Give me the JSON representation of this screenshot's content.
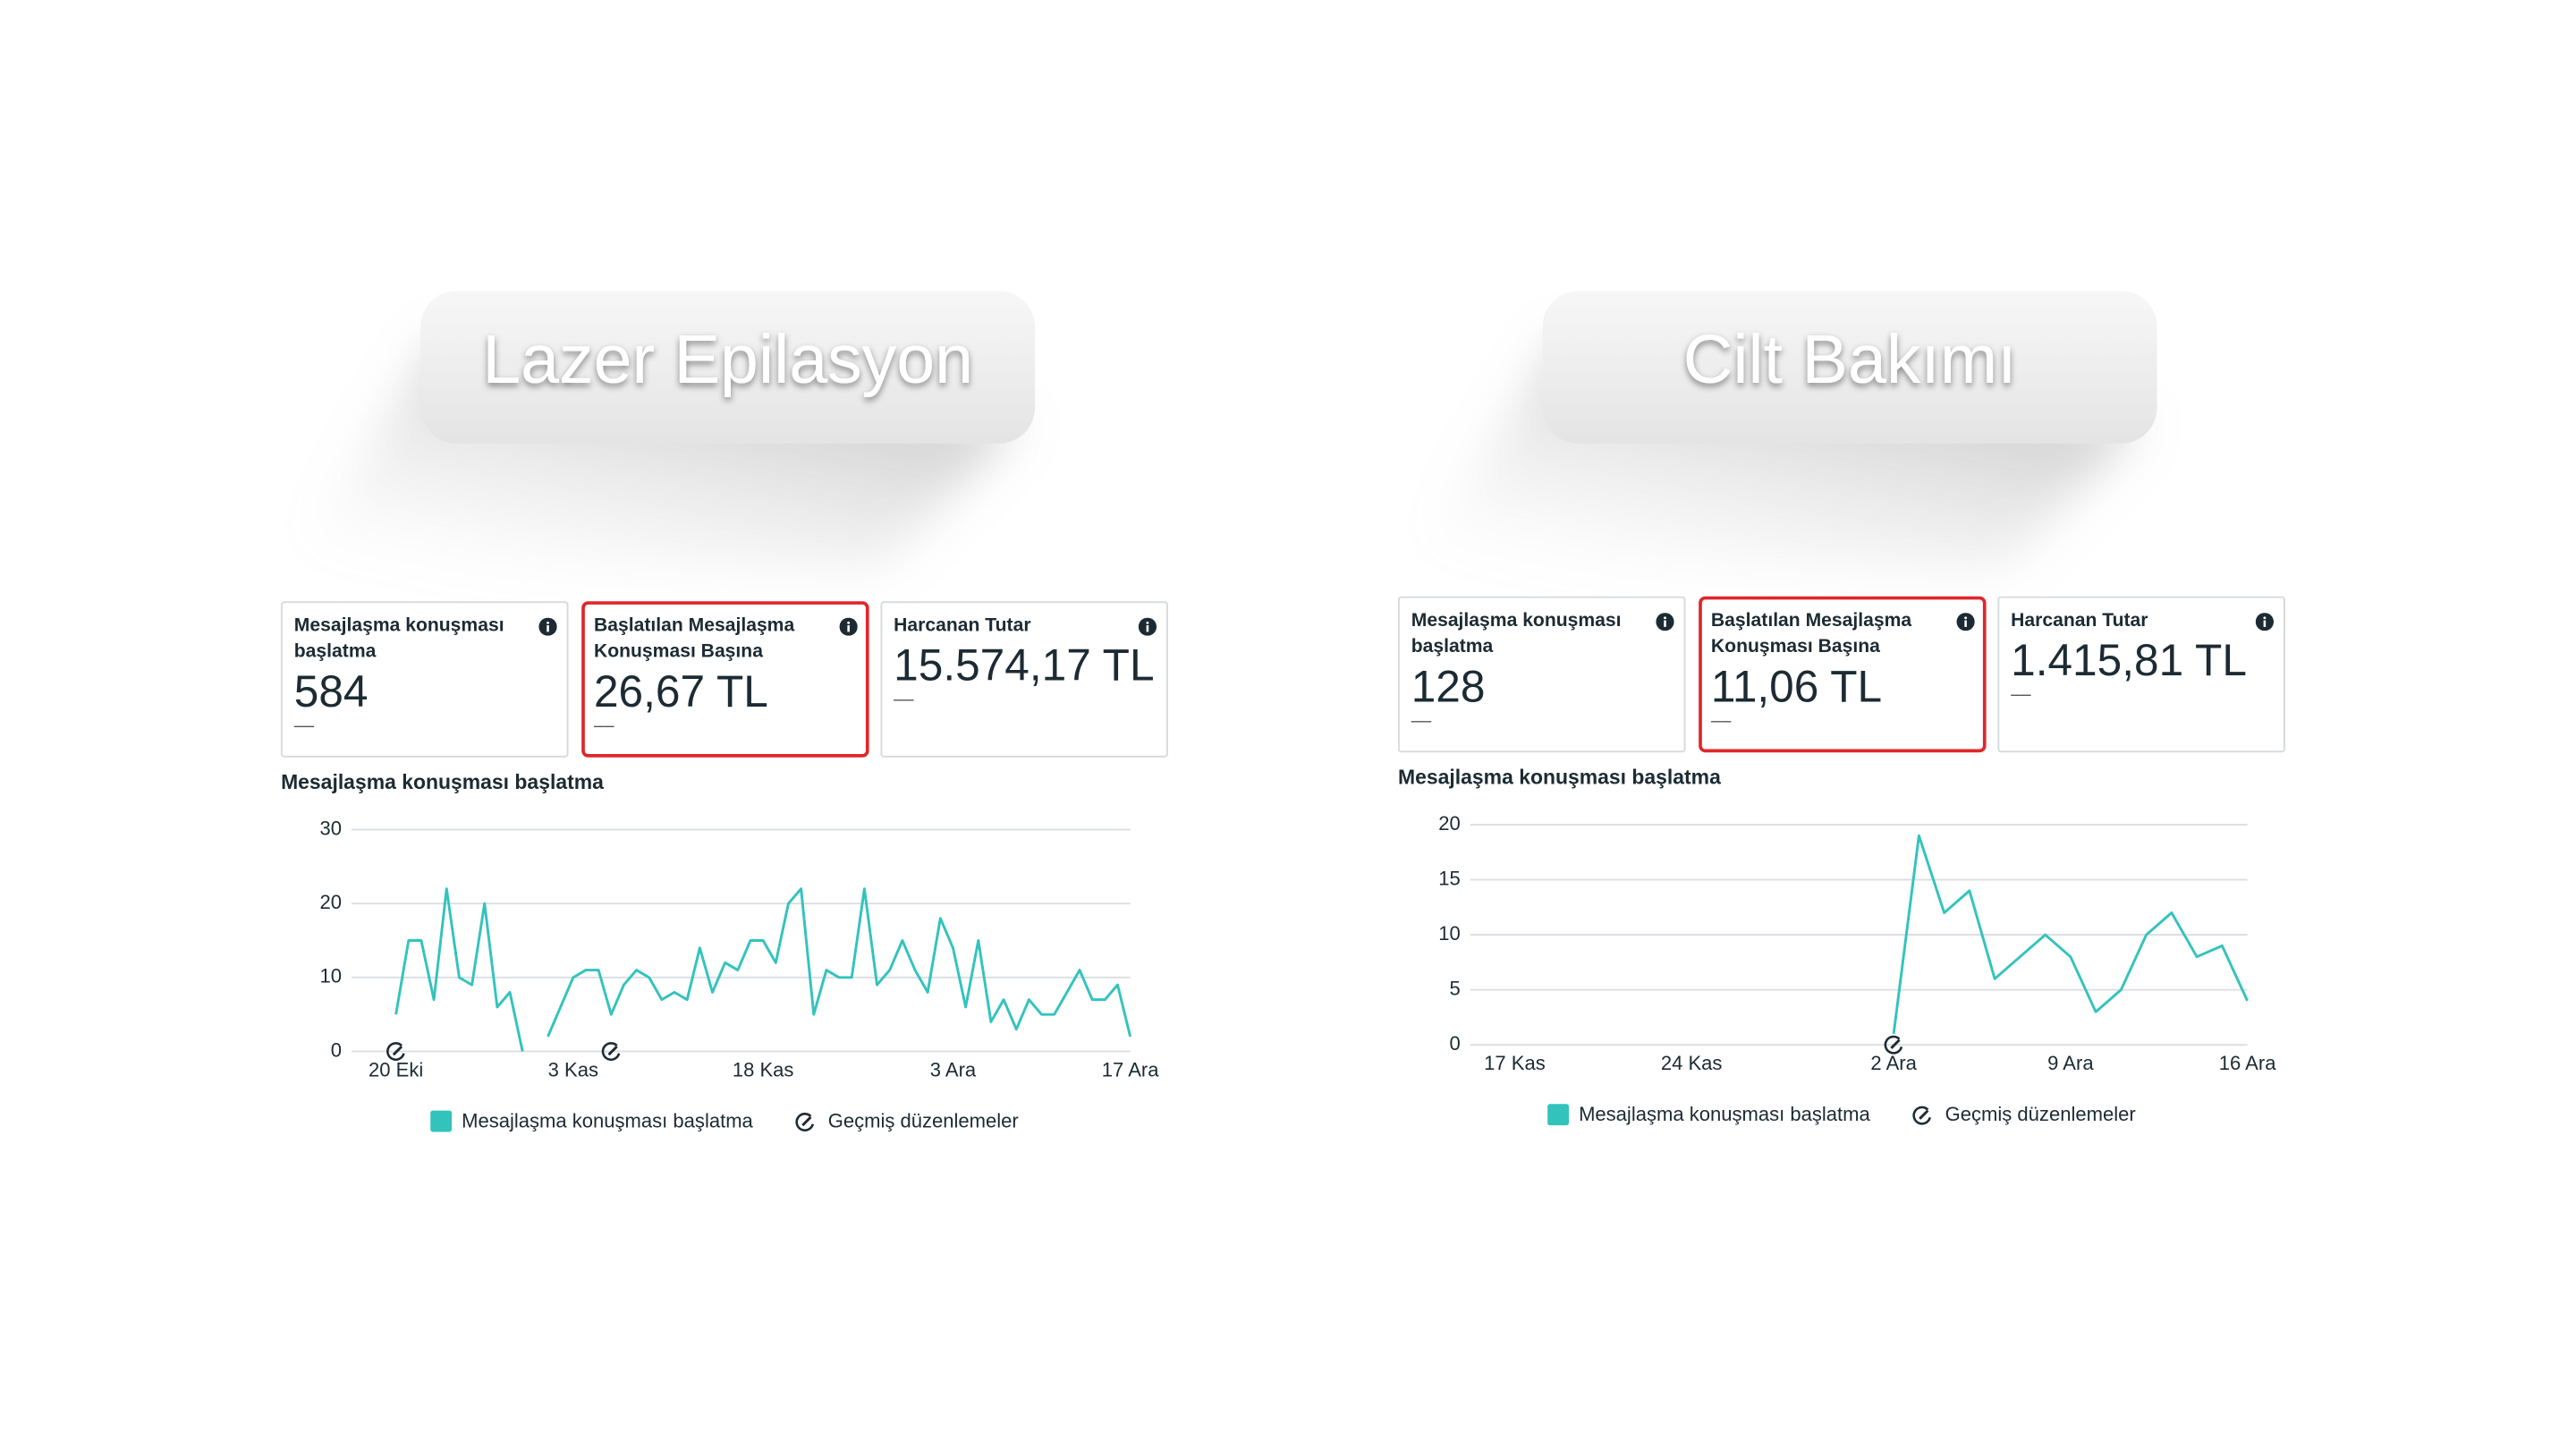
{
  "panels": [
    {
      "heading": "Lazer Epilasyon",
      "cards": [
        {
          "label": "Mesajlaşma konuşması başlatma",
          "value": "584",
          "sub": "––"
        },
        {
          "label": "Başlatılan Mesajlaşma Konuşması Başına",
          "value": "26,67 TL",
          "sub": "––",
          "highlighted": true
        },
        {
          "label": "Harcanan Tutar",
          "value": "15.574,17 TL",
          "sub": "––"
        }
      ]
    },
    {
      "heading": "Cilt Bakımı",
      "cards": [
        {
          "label": "Mesajlaşma konuşması başlatma",
          "value": "128",
          "sub": "––"
        },
        {
          "label": "Başlatılan Mesajlaşma Konuşması Başına",
          "value": "11,06 TL",
          "sub": "––",
          "highlighted": true
        },
        {
          "label": "Harcanan Tutar",
          "value": "1.415,81 TL",
          "sub": "––"
        }
      ]
    }
  ],
  "chart_data": [
    {
      "type": "line",
      "title": "Mesajlaşma konuşması başlatma",
      "categories": [
        "20 Eki",
        null,
        null,
        null,
        null,
        null,
        null,
        null,
        null,
        null,
        null,
        null,
        null,
        null,
        "3 Kas",
        null,
        null,
        null,
        null,
        null,
        null,
        null,
        null,
        null,
        null,
        null,
        null,
        null,
        null,
        "18 Kas",
        null,
        null,
        null,
        null,
        null,
        null,
        null,
        null,
        null,
        null,
        null,
        null,
        null,
        null,
        "3 Ara",
        null,
        null,
        null,
        null,
        null,
        null,
        null,
        null,
        null,
        null,
        null,
        null,
        null,
        "17 Ara"
      ],
      "series": [
        {
          "name": "Mesajlaşma konuşması başlatma",
          "color": "#33c3bd",
          "values": [
            5,
            15,
            15,
            7,
            22,
            10,
            9,
            20,
            6,
            8,
            0,
            null,
            2,
            6,
            10,
            11,
            11,
            5,
            9,
            11,
            10,
            7,
            8,
            7,
            14,
            8,
            12,
            11,
            15,
            15,
            12,
            20,
            22,
            5,
            11,
            10,
            10,
            22,
            9,
            11,
            15,
            11,
            8,
            18,
            14,
            6,
            15,
            4,
            7,
            3,
            7,
            5,
            5,
            8,
            11,
            7,
            7,
            9,
            2
          ]
        }
      ],
      "ylim": [
        0,
        30
      ],
      "yticks": [
        0,
        10,
        20,
        30
      ],
      "grid": true,
      "edit_markers": [
        0,
        17
      ],
      "edit_label": "Geçmiş düzenlemeler"
    },
    {
      "type": "line",
      "title": "Mesajlaşma konuşması başlatma",
      "categories": [
        "17 Kas",
        null,
        null,
        null,
        null,
        null,
        null,
        "24 Kas",
        null,
        null,
        null,
        null,
        null,
        null,
        null,
        "2 Ara",
        null,
        null,
        null,
        null,
        null,
        null,
        "9 Ara",
        null,
        null,
        null,
        null,
        null,
        null,
        "16 Ara"
      ],
      "series": [
        {
          "name": "Mesajlaşma konuşması başlatma",
          "color": "#33c3bd",
          "values": [
            null,
            null,
            null,
            null,
            null,
            null,
            null,
            null,
            null,
            null,
            null,
            null,
            null,
            null,
            null,
            1,
            19,
            12,
            14,
            6,
            8,
            10,
            8,
            3,
            5,
            10,
            12,
            8,
            9,
            4
          ]
        }
      ],
      "ylim": [
        0,
        20
      ],
      "yticks": [
        0,
        5,
        10,
        15,
        20
      ],
      "grid": true,
      "edit_markers": [
        15
      ],
      "edit_label": "Geçmiş düzenlemeler"
    }
  ]
}
